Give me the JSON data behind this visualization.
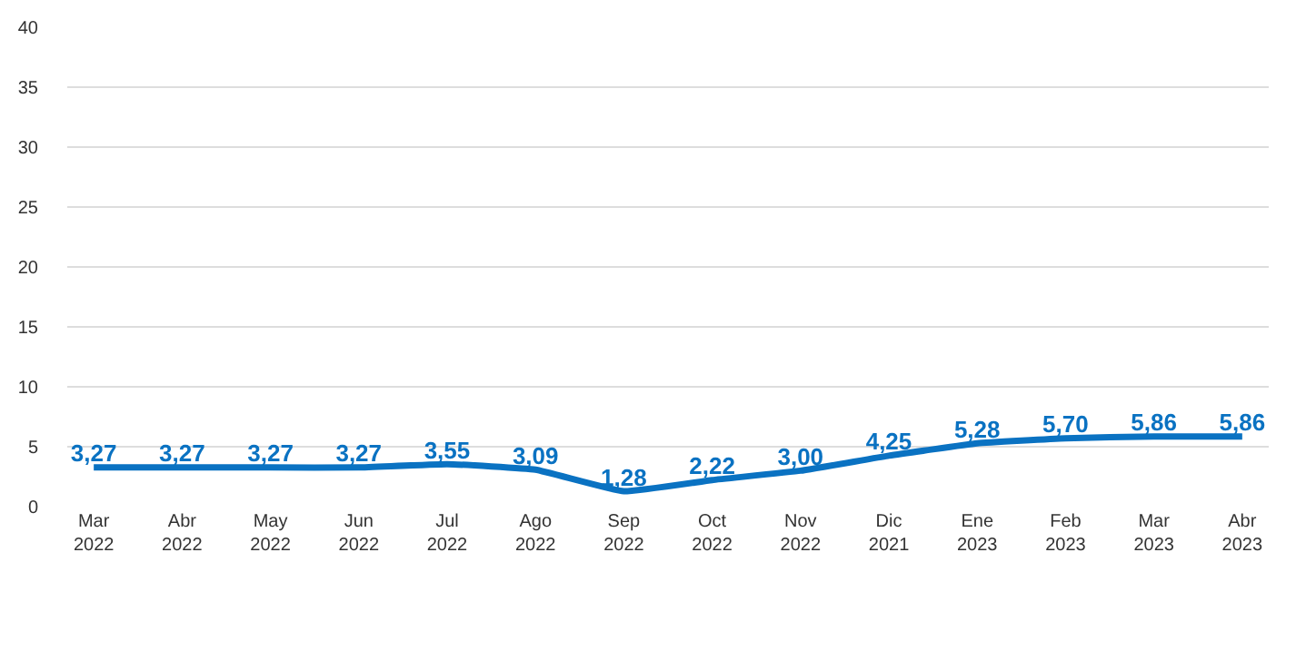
{
  "chart_data": {
    "type": "line",
    "categories": [
      "Mar\n2022",
      "Abr\n2022",
      "May\n2022",
      "Jun\n2022",
      "Jul\n2022",
      "Ago\n2022",
      "Sep\n2022",
      "Oct\n2022",
      "Nov\n2022",
      "Dic\n2021",
      "Ene\n2023",
      "Feb\n2023",
      "Mar\n2023",
      "Abr\n2023"
    ],
    "series": [
      {
        "color": "#0a72c2",
        "values": [
          3.27,
          3.27,
          3.27,
          3.27,
          3.55,
          3.09,
          1.28,
          2.22,
          3.0,
          4.25,
          5.28,
          5.7,
          5.86,
          5.86
        ],
        "value_labels": [
          "3,27",
          "3,27",
          "3,27",
          "3,27",
          "3,55",
          "3,09",
          "1,28",
          "2,22",
          "3,00",
          "4,25",
          "5,28",
          "5,70",
          "5,86",
          "5,86"
        ]
      }
    ],
    "ylim": [
      0,
      40
    ],
    "yticks": [
      0,
      5,
      10,
      15,
      20,
      25,
      30,
      35,
      40
    ],
    "grid": "y",
    "legend": false,
    "marker": "none",
    "line_style": "solid"
  }
}
